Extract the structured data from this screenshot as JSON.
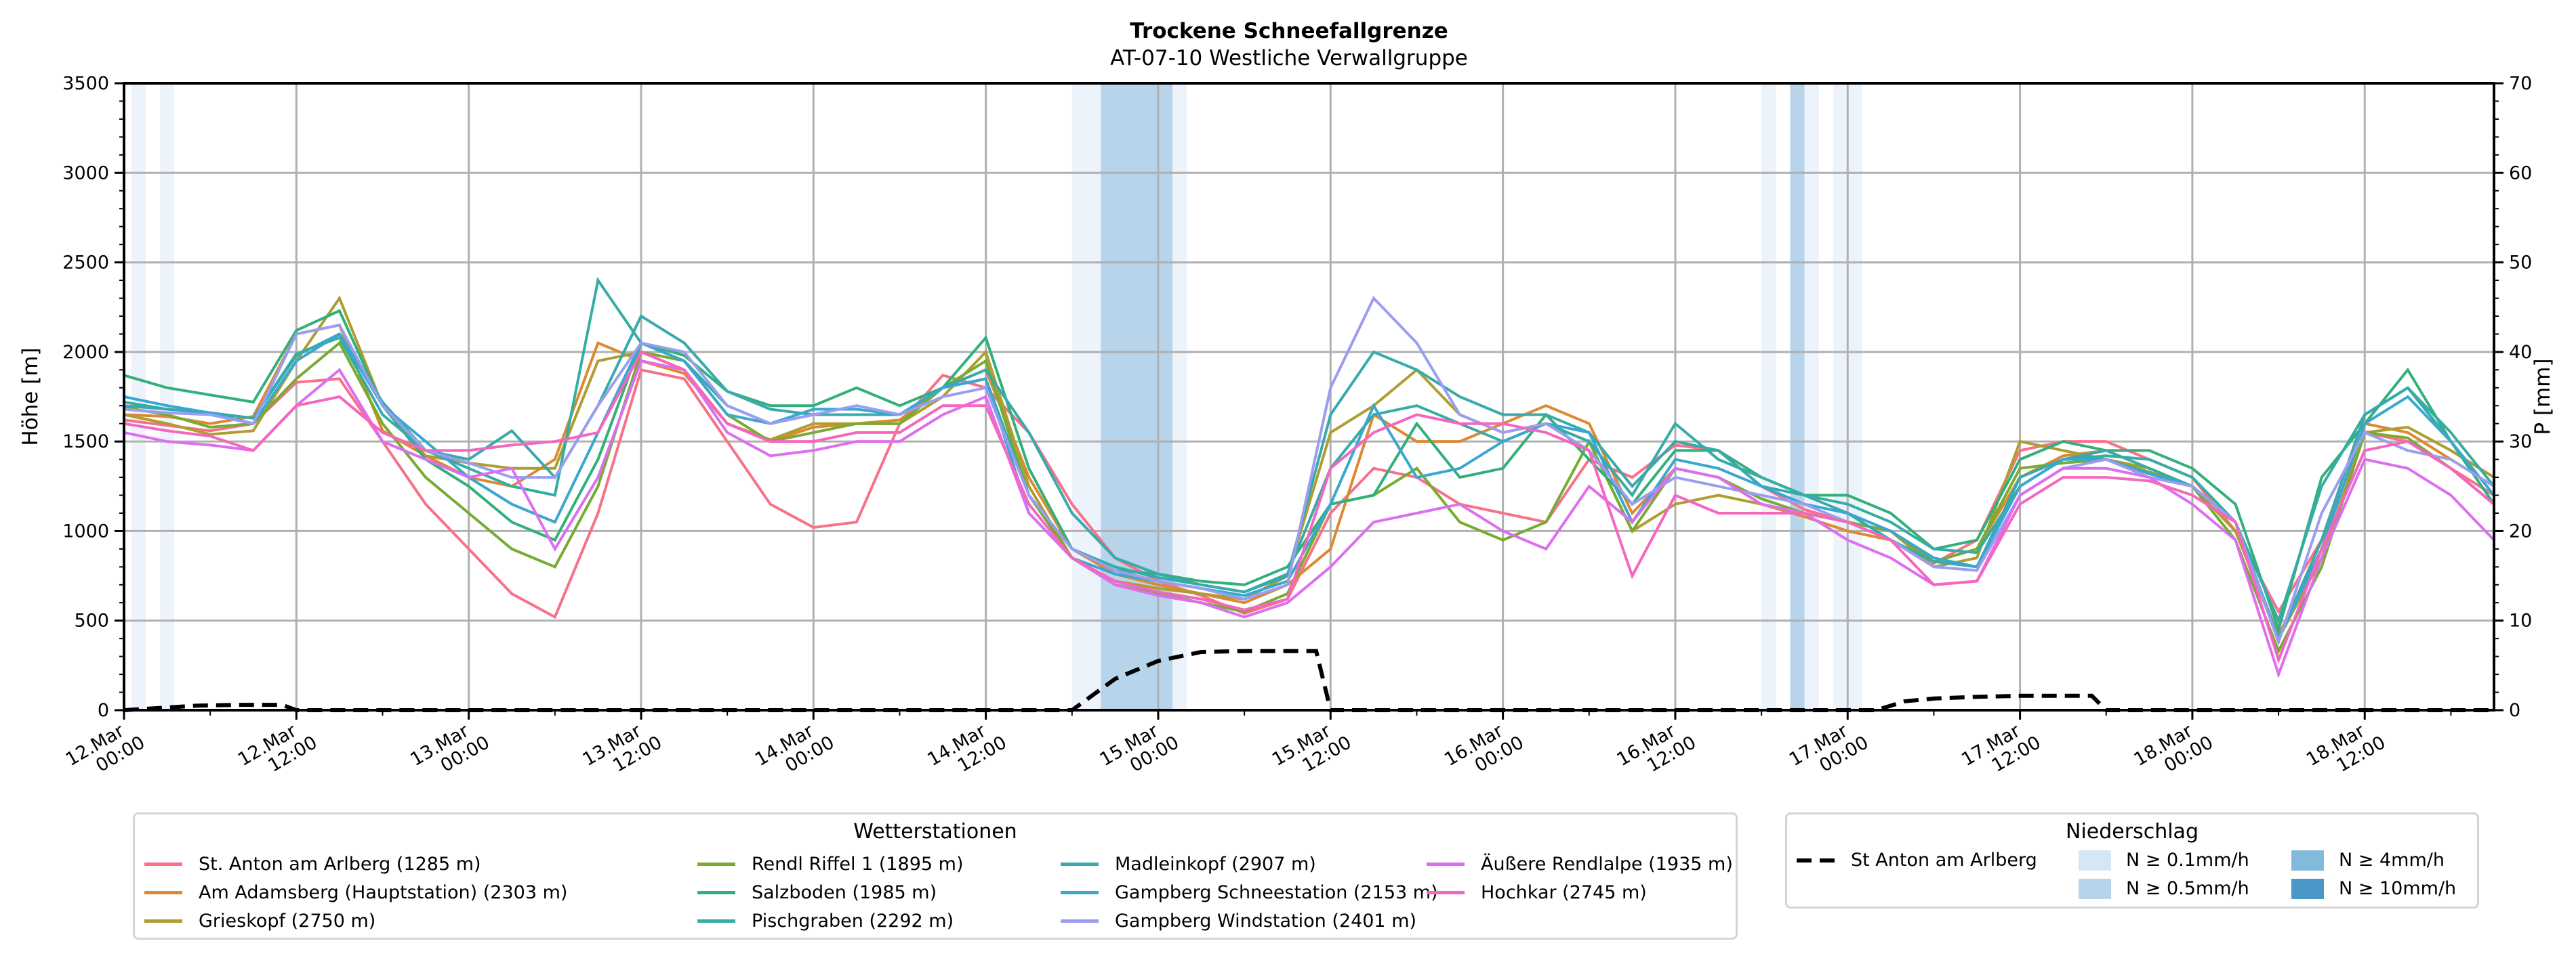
{
  "chart_data": {
    "type": "line",
    "title": "Trockene Schneefallgrenze",
    "subtitle": "AT-07-10 Westliche Verwallgruppe",
    "ylabel": "Höhe [m]",
    "ylabel_right": "P [mm]",
    "ylim": [
      0,
      3500
    ],
    "ylim_right": [
      0,
      70
    ],
    "yticks": [
      0,
      500,
      1000,
      1500,
      2000,
      2500,
      3000,
      3500
    ],
    "yticks_right": [
      0,
      10,
      20,
      30,
      40,
      50,
      60,
      70
    ],
    "x_unit": "hours since 12.Mar 00:00",
    "xlim_hours": [
      0,
      165
    ],
    "xticks": [
      {
        "h": 0,
        "line1": "12.Mar",
        "line2": "00:00"
      },
      {
        "h": 12,
        "line1": "12.Mar",
        "line2": "12:00"
      },
      {
        "h": 24,
        "line1": "13.Mar",
        "line2": "00:00"
      },
      {
        "h": 36,
        "line1": "13.Mar",
        "line2": "12:00"
      },
      {
        "h": 48,
        "line1": "14.Mar",
        "line2": "00:00"
      },
      {
        "h": 60,
        "line1": "14.Mar",
        "line2": "12:00"
      },
      {
        "h": 72,
        "line1": "15.Mar",
        "line2": "00:00"
      },
      {
        "h": 84,
        "line1": "15.Mar",
        "line2": "12:00"
      },
      {
        "h": 96,
        "line1": "16.Mar",
        "line2": "00:00"
      },
      {
        "h": 108,
        "line1": "16.Mar",
        "line2": "12:00"
      },
      {
        "h": 120,
        "line1": "17.Mar",
        "line2": "00:00"
      },
      {
        "h": 132,
        "line1": "17.Mar",
        "line2": "12:00"
      },
      {
        "h": 144,
        "line1": "18.Mar",
        "line2": "00:00"
      },
      {
        "h": 156,
        "line1": "18.Mar",
        "line2": "12:00"
      }
    ],
    "grid": true,
    "x_hours": [
      0,
      3,
      6,
      9,
      12,
      15,
      18,
      21,
      24,
      27,
      30,
      33,
      36,
      39,
      42,
      45,
      48,
      51,
      54,
      57,
      60,
      63,
      66,
      69,
      72,
      75,
      78,
      81,
      84,
      87,
      90,
      93,
      96,
      99,
      102,
      105,
      108,
      111,
      114,
      117,
      120,
      123,
      126,
      129,
      132,
      135,
      138,
      141,
      144,
      147,
      150,
      153,
      156,
      159,
      162,
      165
    ],
    "series": [
      {
        "name": "St. Anton am Arlberg (1285 m)",
        "color": "#f77189",
        "values": [
          1620,
          1590,
          1560,
          1600,
          1830,
          1850,
          1500,
          1150,
          900,
          650,
          520,
          1100,
          1900,
          1850,
          1500,
          1150,
          1020,
          1050,
          1600,
          1870,
          1800,
          1550,
          1150,
          850,
          720,
          640,
          540,
          620,
          1100,
          1350,
          1300,
          1150,
          1100,
          1050,
          1400,
          1300,
          1480,
          1450,
          1250,
          1120,
          1050,
          1000,
          820,
          950,
          1450,
          1500,
          1500,
          1400,
          1300,
          1000,
          550,
          950,
          1550,
          1500,
          1350,
          1200
        ]
      },
      {
        "name": "Am Adamsberg (Hauptstation) (2303 m)",
        "color": "#dc8932",
        "values": [
          1650,
          1640,
          1600,
          1640,
          2100,
          2150,
          1560,
          1420,
          1300,
          1250,
          1400,
          2050,
          1950,
          1880,
          1600,
          1500,
          1580,
          1600,
          1620,
          1800,
          1900,
          1300,
          900,
          760,
          700,
          650,
          600,
          700,
          900,
          1650,
          1500,
          1500,
          1600,
          1700,
          1600,
          1100,
          1350,
          1300,
          1150,
          1080,
          1000,
          950,
          830,
          900,
          1300,
          1420,
          1450,
          1350,
          1250,
          1000,
          420,
          900,
          1600,
          1550,
          1400,
          1250
        ]
      },
      {
        "name": "Grieskopf (2750 m)",
        "color": "#ae9d31",
        "values": [
          1650,
          1600,
          1540,
          1560,
          1950,
          2300,
          1700,
          1420,
          1380,
          1350,
          1350,
          1950,
          2000,
          1900,
          1600,
          1510,
          1600,
          1600,
          1600,
          1750,
          2000,
          1250,
          850,
          720,
          680,
          650,
          620,
          750,
          1550,
          1700,
          1900,
          1650,
          1550,
          1600,
          1500,
          1000,
          1150,
          1200,
          1150,
          1100,
          1050,
          1000,
          800,
          850,
          1500,
          1450,
          1400,
          1350,
          1250,
          1000,
          400,
          850,
          1550,
          1580,
          1450,
          1300
        ]
      },
      {
        "name": "Rendl Riffel 1 (1895 m)",
        "color": "#77ab31",
        "values": [
          1690,
          1650,
          1580,
          1600,
          1850,
          2050,
          1600,
          1300,
          1100,
          900,
          800,
          1250,
          2000,
          1950,
          1650,
          1500,
          1550,
          1600,
          1600,
          1800,
          1950,
          1200,
          850,
          700,
          650,
          600,
          550,
          650,
          1150,
          1200,
          1350,
          1050,
          950,
          1050,
          1500,
          1000,
          1350,
          1300,
          1180,
          1100,
          1050,
          1000,
          830,
          900,
          1350,
          1380,
          1400,
          1330,
          1250,
          950,
          330,
          800,
          1550,
          1520,
          1350,
          1150
        ]
      },
      {
        "name": "Salzboden (1985 m)",
        "color": "#33b07a",
        "values": [
          1870,
          1800,
          1760,
          1720,
          2120,
          2230,
          1700,
          1400,
          1250,
          1050,
          950,
          1400,
          2050,
          1980,
          1780,
          1700,
          1700,
          1800,
          1700,
          1800,
          2080,
          1350,
          900,
          780,
          760,
          720,
          700,
          800,
          1150,
          1200,
          1600,
          1300,
          1350,
          1650,
          1400,
          1150,
          1450,
          1450,
          1300,
          1200,
          1200,
          1100,
          900,
          950,
          1400,
          1500,
          1450,
          1450,
          1350,
          1150,
          450,
          1300,
          1600,
          1900,
          1500,
          1150
        ]
      },
      {
        "name": "Pischgraben (2292 m)",
        "color": "#36ada4",
        "values": [
          1720,
          1680,
          1660,
          1630,
          1990,
          2080,
          1650,
          1450,
          1350,
          1250,
          1200,
          2400,
          2050,
          1950,
          1700,
          1600,
          1650,
          1650,
          1650,
          1800,
          1850,
          1200,
          900,
          800,
          740,
          700,
          660,
          760,
          1350,
          1650,
          1700,
          1600,
          1500,
          1600,
          1500,
          1200,
          1600,
          1400,
          1300,
          1200,
          1150,
          1050,
          900,
          880,
          1250,
          1400,
          1420,
          1400,
          1300,
          1050,
          500,
          1250,
          1650,
          1800,
          1550,
          1250
        ]
      },
      {
        "name": "Madleinkopf (2907 m)",
        "color": "#38aaac",
        "values": [
          1700,
          1680,
          1660,
          1630,
          1980,
          2100,
          1720,
          1450,
          1400,
          1560,
          1300,
          1700,
          2200,
          2050,
          1780,
          1680,
          1650,
          1650,
          1650,
          1800,
          1900,
          1550,
          1100,
          850,
          760,
          700,
          660,
          750,
          1650,
          2000,
          1900,
          1750,
          1650,
          1650,
          1550,
          1250,
          1500,
          1450,
          1250,
          1200,
          1100,
          950,
          830,
          800,
          1300,
          1400,
          1450,
          1350,
          1250,
          1050,
          400,
          950,
          1650,
          1800,
          1500,
          1200
        ]
      },
      {
        "name": "Gampberg Schneestation (2153 m)",
        "color": "#39a7d0",
        "values": [
          1750,
          1700,
          1660,
          1600,
          1950,
          2100,
          1700,
          1500,
          1300,
          1150,
          1050,
          1550,
          2050,
          1950,
          1650,
          1600,
          1680,
          1680,
          1650,
          1800,
          1850,
          1100,
          850,
          760,
          720,
          680,
          640,
          720,
          1150,
          1700,
          1300,
          1350,
          1500,
          1600,
          1550,
          1050,
          1400,
          1350,
          1250,
          1150,
          1100,
          1000,
          850,
          800,
          1250,
          1400,
          1400,
          1320,
          1250,
          1050,
          400,
          900,
          1600,
          1750,
          1500,
          1200
        ]
      },
      {
        "name": "Gampberg Windstation (2401 m)",
        "color": "#9a9df0",
        "values": [
          1680,
          1660,
          1650,
          1600,
          2100,
          2150,
          1700,
          1450,
          1380,
          1300,
          1300,
          1700,
          2050,
          2000,
          1700,
          1600,
          1650,
          1700,
          1650,
          1750,
          1800,
          1200,
          900,
          780,
          720,
          680,
          620,
          700,
          1800,
          2300,
          2050,
          1650,
          1550,
          1600,
          1450,
          1150,
          1300,
          1250,
          1200,
          1150,
          1050,
          950,
          800,
          780,
          1200,
          1350,
          1400,
          1300,
          1250,
          1050,
          380,
          1100,
          1550,
          1450,
          1400,
          1250
        ]
      },
      {
        "name": "Äußere Rendlalpe (1935 m)",
        "color": "#dc6ff0",
        "values": [
          1550,
          1500,
          1480,
          1450,
          1700,
          1900,
          1500,
          1400,
          1300,
          1350,
          900,
          1300,
          1950,
          1900,
          1550,
          1420,
          1450,
          1500,
          1500,
          1650,
          1750,
          1100,
          850,
          700,
          640,
          600,
          520,
          600,
          800,
          1050,
          1100,
          1150,
          1000,
          900,
          1250,
          1050,
          1350,
          1300,
          1150,
          1100,
          950,
          850,
          700,
          720,
          1200,
          1350,
          1350,
          1300,
          1150,
          950,
          200,
          850,
          1400,
          1350,
          1200,
          950
        ]
      },
      {
        "name": "Hochkar (2745 m)",
        "color": "#f566be",
        "values": [
          1600,
          1560,
          1530,
          1450,
          1700,
          1750,
          1550,
          1450,
          1450,
          1480,
          1500,
          1550,
          2000,
          1900,
          1600,
          1500,
          1500,
          1550,
          1550,
          1700,
          1700,
          1150,
          850,
          720,
          660,
          620,
          560,
          620,
          1350,
          1550,
          1650,
          1600,
          1600,
          1550,
          1450,
          750,
          1200,
          1100,
          1100,
          1100,
          1050,
          950,
          700,
          720,
          1150,
          1300,
          1300,
          1280,
          1200,
          1050,
          280,
          900,
          1450,
          1500,
          1350,
          1150
        ]
      }
    ],
    "precip_series": {
      "name": "St Anton am Arlberg",
      "unit": "mm",
      "x_hours": [
        0,
        2,
        5,
        8,
        11,
        12,
        60,
        66,
        69,
        72,
        75,
        78,
        81,
        83,
        84,
        120,
        122,
        124,
        126,
        129,
        132,
        135,
        137,
        138,
        165
      ],
      "values": [
        0,
        0.2,
        0.5,
        0.6,
        0.6,
        0,
        0,
        0,
        3.5,
        5.5,
        6.5,
        6.6,
        6.6,
        6.6,
        0,
        0,
        0,
        1,
        1.3,
        1.5,
        1.6,
        1.6,
        1.6,
        0,
        0
      ]
    },
    "precip_intensity_bands": [
      {
        "start_h": 0.5,
        "end_h": 1.5,
        "level": "N ≥ 0.1mm/h"
      },
      {
        "start_h": 2.5,
        "end_h": 3.5,
        "level": "N ≥ 0.1mm/h"
      },
      {
        "start_h": 66.0,
        "end_h": 68.0,
        "level": "N ≥ 0.1mm/h"
      },
      {
        "start_h": 68.0,
        "end_h": 72.0,
        "level": "N ≥ 0.5mm/h"
      },
      {
        "start_h": 72.0,
        "end_h": 73.0,
        "level": "N ≥ 0.5mm/h"
      },
      {
        "start_h": 73.0,
        "end_h": 74.0,
        "level": "N ≥ 0.1mm/h"
      },
      {
        "start_h": 114.0,
        "end_h": 115.0,
        "level": "N ≥ 0.1mm/h"
      },
      {
        "start_h": 116.0,
        "end_h": 117.0,
        "level": "N ≥ 0.5mm/h"
      },
      {
        "start_h": 117.0,
        "end_h": 118.0,
        "level": "N ≥ 0.1mm/h"
      },
      {
        "start_h": 119.0,
        "end_h": 121.0,
        "level": "N ≥ 0.1mm/h"
      }
    ],
    "legend_stations": {
      "title": "Wetterstationen",
      "placement": "bottom-left"
    },
    "legend_precip": {
      "title": "Niederschlag",
      "placement": "bottom-right",
      "line_label": "St Anton am Arlberg",
      "levels": [
        {
          "label": "N ≥ 0.1mm/h",
          "color": "#d6e6f4"
        },
        {
          "label": "N ≥ 0.5mm/h",
          "color": "#b7d4ea"
        },
        {
          "label": "N ≥ 4mm/h",
          "color": "#82badb"
        },
        {
          "label": "N ≥ 10mm/h",
          "color": "#4a98c9"
        }
      ]
    }
  }
}
